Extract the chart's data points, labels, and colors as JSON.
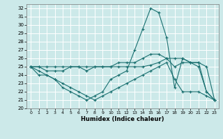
{
  "xlabel": "Humidex (Indice chaleur)",
  "xlim": [
    -0.5,
    23.5
  ],
  "ylim": [
    20,
    32.5
  ],
  "yticks": [
    20,
    21,
    22,
    23,
    24,
    25,
    26,
    27,
    28,
    29,
    30,
    31,
    32
  ],
  "xticks": [
    0,
    1,
    2,
    3,
    4,
    5,
    6,
    7,
    8,
    9,
    10,
    11,
    12,
    13,
    14,
    15,
    16,
    17,
    18,
    19,
    20,
    21,
    22,
    23
  ],
  "bg_color": "#cce9e9",
  "grid_color": "#ffffff",
  "line_color": "#1a7070",
  "series": [
    [
      25.0,
      24.0,
      24.0,
      23.5,
      22.5,
      22.0,
      21.5,
      21.0,
      21.5,
      22.0,
      23.5,
      24.0,
      24.5,
      27.0,
      29.5,
      32.0,
      31.5,
      28.5,
      22.5,
      26.0,
      25.5,
      25.0,
      22.0,
      21.0
    ],
    [
      25.0,
      25.0,
      24.5,
      24.5,
      24.5,
      25.0,
      25.0,
      24.5,
      25.0,
      25.0,
      25.0,
      25.5,
      25.5,
      25.5,
      26.0,
      26.5,
      26.5,
      26.0,
      26.0,
      26.0,
      25.5,
      25.5,
      25.0,
      21.0
    ],
    [
      25.0,
      25.0,
      25.0,
      25.0,
      25.0,
      25.0,
      25.0,
      25.0,
      25.0,
      25.0,
      25.0,
      25.0,
      25.0,
      25.0,
      25.0,
      25.2,
      25.5,
      26.0,
      25.0,
      25.5,
      25.5,
      25.5,
      22.0,
      21.0
    ],
    [
      25.0,
      24.5,
      24.0,
      23.5,
      23.0,
      22.5,
      22.0,
      21.5,
      21.0,
      21.5,
      22.0,
      22.5,
      23.0,
      23.5,
      24.0,
      24.5,
      25.0,
      25.5,
      23.5,
      22.0,
      22.0,
      22.0,
      21.5,
      21.0
    ]
  ]
}
